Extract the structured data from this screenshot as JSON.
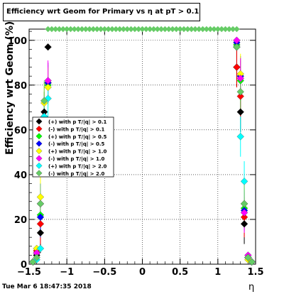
{
  "chart_data": {
    "type": "scatter",
    "title": "Efficiency wrt Geom for Primary vs  η at pT > 0.11",
    "xlabel": "η",
    "ylabel": "Efficiency wrt Geom (%)",
    "xlim": [
      -1.5,
      1.5
    ],
    "ylim": [
      0,
      105
    ],
    "x_ticks": [
      "−1.5",
      "−1",
      "−0.5",
      "0",
      "0.5",
      "1",
      "1.5"
    ],
    "y_ticks": [
      "0",
      "20",
      "40",
      "60",
      "80",
      "100"
    ],
    "grid": true,
    "legend_position": "left-middle",
    "series": [
      {
        "name": "(+) with p T/|q| > 0.1",
        "color": "#000000",
        "points": [
          [
            -1.45,
            1
          ],
          [
            -1.4,
            4
          ],
          [
            -1.35,
            14
          ],
          [
            -1.3,
            68
          ],
          [
            -1.25,
            97
          ],
          [
            1.25,
            88
          ],
          [
            1.3,
            68
          ],
          [
            1.35,
            18
          ],
          [
            1.4,
            3
          ],
          [
            1.45,
            1
          ]
        ]
      },
      {
        "name": "(-) with p T/|q| > 0.1",
        "color": "#ff0000",
        "points": [
          [
            -1.45,
            1
          ],
          [
            -1.4,
            6
          ],
          [
            -1.35,
            18
          ],
          [
            -1.3,
            58
          ],
          [
            -1.25,
            81
          ],
          [
            1.25,
            88
          ],
          [
            1.3,
            75
          ],
          [
            1.35,
            21
          ],
          [
            1.4,
            3
          ],
          [
            1.45,
            1
          ]
        ]
      },
      {
        "name": "(+) with p T/|q| > 0.5",
        "color": "#00ff00",
        "points": [
          [
            -1.45,
            1
          ],
          [
            -1.4,
            5
          ],
          [
            -1.35,
            22
          ],
          [
            -1.3,
            64
          ],
          [
            -1.25,
            80
          ],
          [
            1.25,
            98
          ],
          [
            1.3,
            82
          ],
          [
            1.35,
            25
          ],
          [
            1.4,
            3
          ],
          [
            1.45,
            1
          ]
        ]
      },
      {
        "name": "(-) with p T/|q| > 0.5",
        "color": "#0000ff",
        "points": [
          [
            -1.45,
            1
          ],
          [
            -1.4,
            5
          ],
          [
            -1.35,
            21
          ],
          [
            -1.3,
            59
          ],
          [
            -1.25,
            81
          ],
          [
            1.25,
            99
          ],
          [
            1.3,
            84
          ],
          [
            1.35,
            24
          ],
          [
            1.4,
            3
          ],
          [
            1.45,
            1
          ]
        ]
      },
      {
        "name": "(+) with p T/|q| > 1.0",
        "color": "#ffff00",
        "points": [
          [
            -1.45,
            1
          ],
          [
            -1.4,
            7
          ],
          [
            -1.35,
            30
          ],
          [
            -1.3,
            72
          ],
          [
            -1.25,
            79
          ],
          [
            1.25,
            97
          ],
          [
            1.3,
            85
          ],
          [
            1.35,
            27
          ],
          [
            1.4,
            2
          ],
          [
            1.45,
            1
          ]
        ]
      },
      {
        "name": "(-) with p T/|q| > 1.0",
        "color": "#ff00ff",
        "points": [
          [
            -1.45,
            1
          ],
          [
            -1.4,
            5
          ],
          [
            -1.35,
            27
          ],
          [
            -1.3,
            66
          ],
          [
            -1.25,
            82
          ],
          [
            1.25,
            100
          ],
          [
            1.3,
            83
          ],
          [
            1.35,
            23
          ],
          [
            1.4,
            4
          ],
          [
            1.45,
            1
          ]
        ]
      },
      {
        "name": "(+) with p T/|q| > 2.0",
        "color": "#00ffff",
        "points": [
          [
            -1.45,
            1
          ],
          [
            -1.4,
            2
          ],
          [
            -1.35,
            7
          ],
          [
            -1.3,
            66
          ],
          [
            -1.25,
            74
          ],
          [
            1.25,
            97
          ],
          [
            1.3,
            57
          ],
          [
            1.35,
            37
          ],
          [
            1.4,
            3
          ],
          [
            1.45,
            1
          ]
        ]
      },
      {
        "name": "(-) with p T/|q| > 2.0",
        "color": "#66cc66",
        "points": [
          [
            -1.45,
            1
          ],
          [
            -1.4,
            3
          ],
          [
            -1.35,
            27
          ],
          [
            -1.3,
            73
          ],
          [
            -1.25,
            52
          ],
          [
            1.25,
            97
          ],
          [
            1.3,
            77
          ],
          [
            1.35,
            27
          ],
          [
            1.4,
            3
          ],
          [
            1.45,
            1
          ]
        ]
      }
    ],
    "flat_row": {
      "color": "#66cc66",
      "x_start": -1.25,
      "x_end": 1.25,
      "y": 105
    }
  },
  "datestamp": "Tue Mar  6 18:47:35 2018"
}
